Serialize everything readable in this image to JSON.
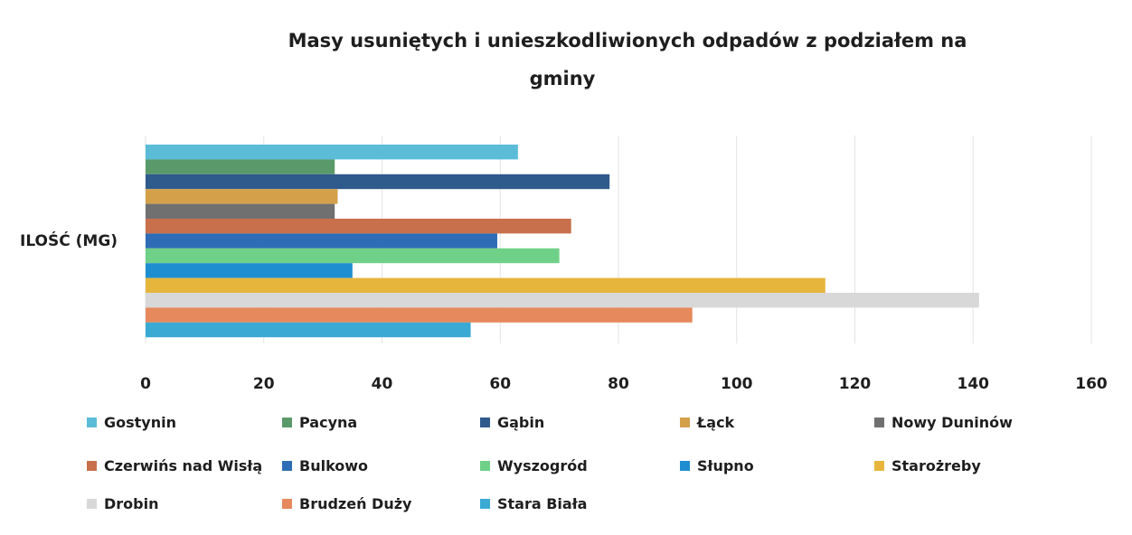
{
  "chart_data": {
    "type": "bar",
    "orientation": "horizontal",
    "title": "Masy usuniętych i unieszkodliwionych odpadów z podziałem na gminy",
    "title_lines": [
      "Masy usuniętych i unieszkodliwionych odpadów z podziałem na",
      "gminy"
    ],
    "categories": [
      "ILOŚĆ (MG)"
    ],
    "xlim": [
      0,
      160
    ],
    "x_ticks": [
      0,
      20,
      40,
      60,
      80,
      100,
      120,
      140,
      160
    ],
    "grid": true,
    "legend_position": "bottom",
    "series": [
      {
        "name": "Gostynin",
        "values": [
          63
        ],
        "color": "#5bbcd8"
      },
      {
        "name": "Pacyna",
        "values": [
          32
        ],
        "color": "#5a9a6a"
      },
      {
        "name": "Gąbin",
        "values": [
          78.5
        ],
        "color": "#2f5a8c"
      },
      {
        "name": "Łąck",
        "values": [
          32.5
        ],
        "color": "#d4a04a"
      },
      {
        "name": "Nowy Duninów",
        "values": [
          32
        ],
        "color": "#707070"
      },
      {
        "name": "Czerwińs nad Wisłą",
        "values": [
          72
        ],
        "color": "#c8704c"
      },
      {
        "name": "Bulkowo",
        "values": [
          59.5
        ],
        "color": "#2e6db5"
      },
      {
        "name": "Wyszogród",
        "values": [
          70
        ],
        "color": "#6fd088"
      },
      {
        "name": "Słupno",
        "values": [
          35
        ],
        "color": "#1e8ed0"
      },
      {
        "name": "Starożreby",
        "values": [
          115
        ],
        "color": "#e6b63c"
      },
      {
        "name": "Drobin",
        "values": [
          141
        ],
        "color": "#d8d8d8"
      },
      {
        "name": "Brudzeń Duży",
        "values": [
          92.5
        ],
        "color": "#e6895c"
      },
      {
        "name": "Stara Biała",
        "values": [
          55
        ],
        "color": "#3aa9d4"
      }
    ]
  }
}
